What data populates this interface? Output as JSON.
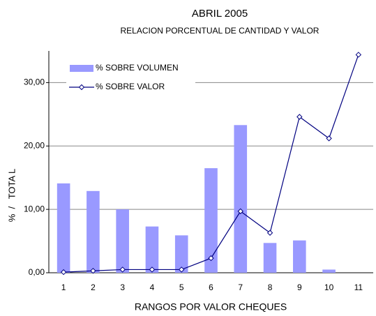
{
  "chart_data": {
    "type": "bar_line",
    "title": "ABRIL 2005",
    "subtitle": "RELACION PORCENTUAL DE CANTIDAD Y VALOR",
    "x_label": "RANGOS POR VALOR CHEQUES",
    "y_label": "%  /   TOTA L",
    "categories": [
      "1",
      "2",
      "3",
      "4",
      "5",
      "6",
      "7",
      "8",
      "9",
      "10",
      "11"
    ],
    "series": [
      {
        "name": "% SOBRE VOLUMEN",
        "type": "bar",
        "color": "#9999ff",
        "values": [
          14.1,
          12.9,
          10.0,
          7.3,
          5.9,
          16.5,
          23.3,
          4.7,
          5.1,
          0.5,
          0
        ]
      },
      {
        "name": "% SOBRE VALOR",
        "type": "line",
        "color": "#000080",
        "values": [
          0.1,
          0.3,
          0.5,
          0.5,
          0.5,
          2.3,
          9.7,
          6.3,
          24.6,
          21.2,
          34.4
        ]
      }
    ],
    "ylim": [
      0,
      35
    ],
    "yticks": [
      {
        "value": 0,
        "label": "0,00"
      },
      {
        "value": 10,
        "label": "10,00"
      },
      {
        "value": 20,
        "label": "20,00"
      },
      {
        "value": 30,
        "label": "30,00"
      }
    ],
    "grid": true,
    "legend": "upper left"
  }
}
